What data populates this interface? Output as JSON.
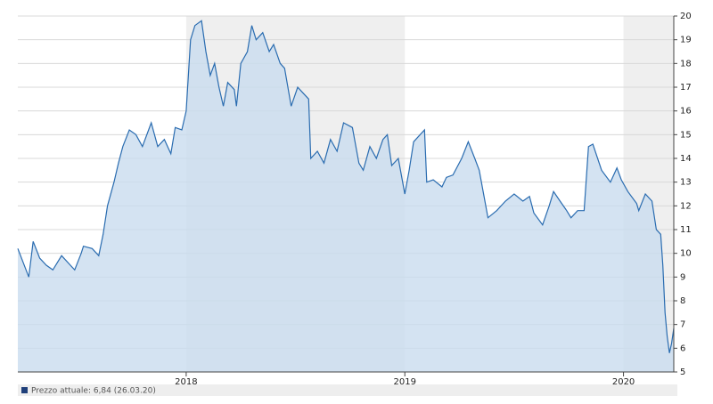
{
  "chart_data": {
    "type": "area",
    "x": [
      2017.23,
      2017.28,
      2017.3,
      2017.33,
      2017.36,
      2017.39,
      2017.43,
      2017.47,
      2017.49,
      2017.52,
      2017.53,
      2017.57,
      2017.6,
      2017.62,
      2017.64,
      2017.67,
      2017.69,
      2017.71,
      2017.74,
      2017.77,
      2017.8,
      2017.84,
      2017.87,
      2017.9,
      2017.93,
      2017.95,
      2017.98,
      2018.0,
      2018.02,
      2018.04,
      2018.07,
      2018.09,
      2018.11,
      2018.13,
      2018.15,
      2018.17,
      2018.19,
      2018.22,
      2018.23,
      2018.25,
      2018.28,
      2018.3,
      2018.32,
      2018.35,
      2018.38,
      2018.4,
      2018.43,
      2018.45,
      2018.48,
      2018.51,
      2018.53,
      2018.56,
      2018.57,
      2018.6,
      2018.63,
      2018.66,
      2018.69,
      2018.72,
      2018.76,
      2018.79,
      2018.81,
      2018.84,
      2018.87,
      2018.9,
      2018.92,
      2018.94,
      2018.97,
      2019.0,
      2019.02,
      2019.04,
      2019.09,
      2019.1,
      2019.13,
      2019.17,
      2019.19,
      2019.22,
      2019.26,
      2019.29,
      2019.32,
      2019.34,
      2019.36,
      2019.38,
      2019.42,
      2019.46,
      2019.5,
      2019.54,
      2019.57,
      2019.59,
      2019.63,
      2019.66,
      2019.68,
      2019.71,
      2019.74,
      2019.76,
      2019.79,
      2019.82,
      2019.84,
      2019.86,
      2019.9,
      2019.94,
      2019.97,
      2019.99,
      2020.02,
      2020.06,
      2020.07,
      2020.1,
      2020.13,
      2020.15,
      2020.17,
      2020.18,
      2020.19,
      2020.2,
      2020.21,
      2020.22,
      2020.23
    ],
    "series": [
      {
        "name": "Prezzo attuale: 6,84 (26.03.20)",
        "color": "#2a6cb0",
        "fill": "#c9dcef",
        "values": [
          10.2,
          9.0,
          10.5,
          9.8,
          9.5,
          9.3,
          9.9,
          9.5,
          9.3,
          10.0,
          10.3,
          10.2,
          9.9,
          10.8,
          12.0,
          13.0,
          13.8,
          14.5,
          15.2,
          15.0,
          14.5,
          15.5,
          14.5,
          14.8,
          14.2,
          15.3,
          15.2,
          16.0,
          19.0,
          19.6,
          19.8,
          18.5,
          17.5,
          18.0,
          17.0,
          16.2,
          17.2,
          16.9,
          16.2,
          18.0,
          18.5,
          19.6,
          19.0,
          19.3,
          18.5,
          18.8,
          18.0,
          17.8,
          16.2,
          17.0,
          16.8,
          16.5,
          14.0,
          14.3,
          13.8,
          14.8,
          14.3,
          15.5,
          15.3,
          13.8,
          13.5,
          14.5,
          14.0,
          14.8,
          15.0,
          13.7,
          14.0,
          12.5,
          13.5,
          14.7,
          15.2,
          13.0,
          13.1,
          12.8,
          13.2,
          13.3,
          14.0,
          14.7,
          14.0,
          13.5,
          12.5,
          11.5,
          11.8,
          12.2,
          12.5,
          12.2,
          12.4,
          11.7,
          11.2,
          12.0,
          12.6,
          12.2,
          11.8,
          11.5,
          11.8,
          11.8,
          14.5,
          14.6,
          13.5,
          13.0,
          13.6,
          13.1,
          12.6,
          12.1,
          11.8,
          12.5,
          12.2,
          11.0,
          10.8,
          9.5,
          7.5,
          6.5,
          5.8,
          6.2,
          6.84
        ]
      }
    ],
    "xlim": [
      2017.23,
      2020.23
    ],
    "xticks": [
      2018,
      2019,
      2020
    ],
    "ylim": [
      5,
      20
    ],
    "yticks": [
      5,
      6,
      7,
      8,
      9,
      10,
      11,
      12,
      13,
      14,
      15,
      16,
      17,
      18,
      19,
      20
    ],
    "grid": true
  }
}
